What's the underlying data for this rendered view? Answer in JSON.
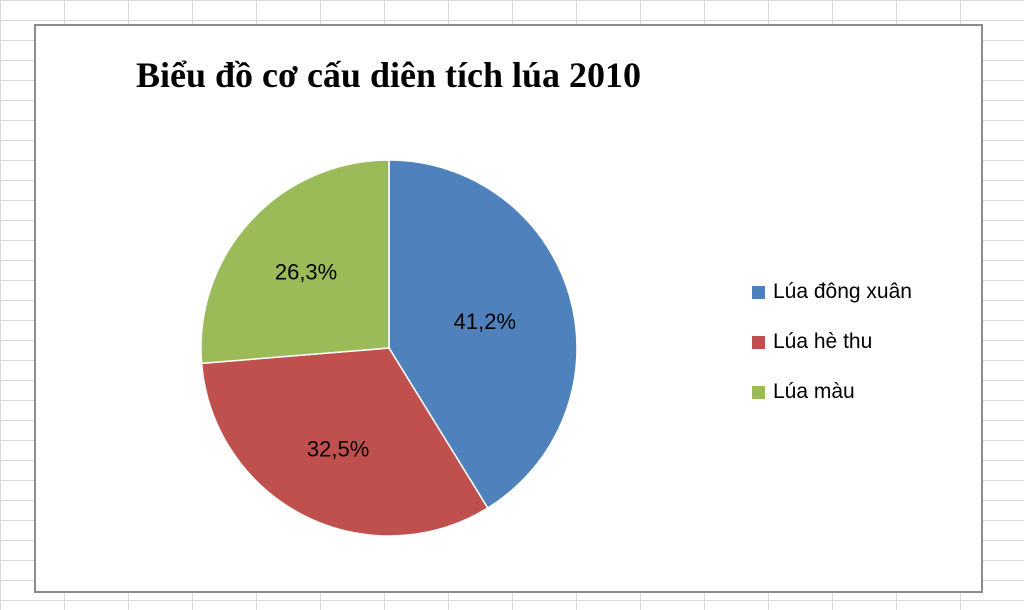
{
  "chart_data": {
    "type": "pie",
    "title": "Biểu đồ cơ cấu diên tích lúa 2010",
    "categories": [
      "Lúa đông xuân",
      "Lúa hè thu",
      "Lúa màu"
    ],
    "values": [
      41.2,
      32.5,
      26.3
    ],
    "data_labels": [
      "41,2%",
      "32,5%",
      "26,3%"
    ],
    "colors": [
      "#4f81bd",
      "#c0504d",
      "#9bbb59"
    ],
    "legend_position": "right"
  }
}
